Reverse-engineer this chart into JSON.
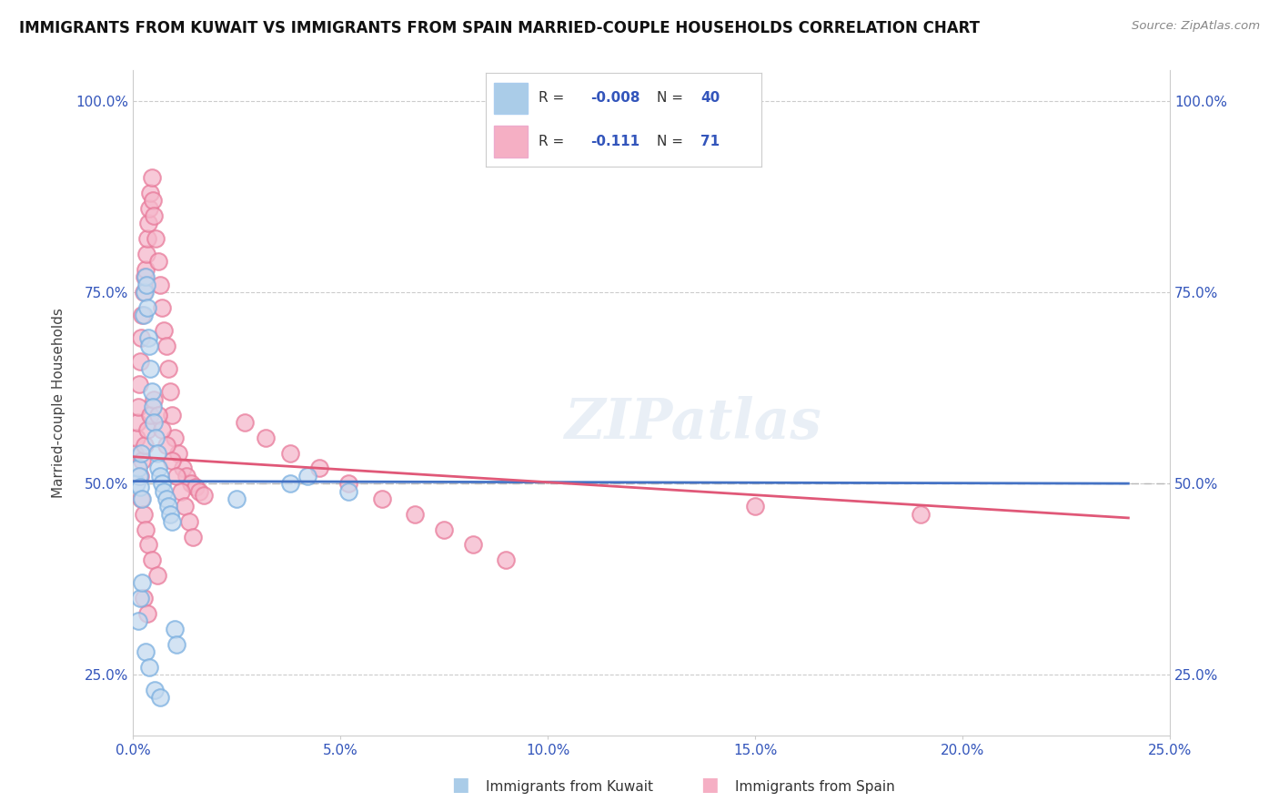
{
  "title": "IMMIGRANTS FROM KUWAIT VS IMMIGRANTS FROM SPAIN MARRIED-COUPLE HOUSEHOLDS CORRELATION CHART",
  "source": "Source: ZipAtlas.com",
  "ylabel": "Married-couple Households",
  "legend_label1": "Immigrants from Kuwait",
  "legend_label2": "Immigrants from Spain",
  "R1": -0.008,
  "N1": 40,
  "R2": -0.111,
  "N2": 71,
  "color1_edge": "#7aafe0",
  "color1_face": "#c5daef",
  "color2_edge": "#e87a9a",
  "color2_face": "#f5b8cb",
  "legend_color1": "#aacce8",
  "legend_color2": "#f5afc4",
  "line_color1": "#4472c4",
  "line_color2": "#e05878",
  "ref_line_color": "#b8b8b8",
  "text_color_blue": "#3355bb",
  "text_color_red": "#cc2244",
  "xmin": 0.0,
  "xmax": 0.25,
  "ymin": 0.17,
  "ymax": 1.04,
  "yticks": [
    0.25,
    0.5,
    0.75,
    1.0
  ],
  "ytick_labels": [
    "25.0%",
    "50.0%",
    "75.0%",
    "100.0%"
  ],
  "xticks": [
    0.0,
    0.05,
    0.1,
    0.15,
    0.2,
    0.25
  ],
  "xtick_labels": [
    "0.0%",
    "5.0%",
    "10.0%",
    "15.0%",
    "20.0%",
    "25.0%"
  ],
  "watermark": "ZIPatlas",
  "background_color": "#ffffff",
  "scatter1_x": [
    0.0008,
    0.0012,
    0.0015,
    0.0018,
    0.002,
    0.0022,
    0.0025,
    0.0028,
    0.003,
    0.0032,
    0.0035,
    0.0038,
    0.004,
    0.0042,
    0.0045,
    0.0048,
    0.005,
    0.0055,
    0.0058,
    0.0062,
    0.0065,
    0.007,
    0.0075,
    0.008,
    0.0085,
    0.009,
    0.0095,
    0.01,
    0.0105,
    0.0012,
    0.0018,
    0.0022,
    0.003,
    0.004,
    0.0052,
    0.0065,
    0.042,
    0.052,
    0.025,
    0.038
  ],
  "scatter1_y": [
    0.5,
    0.52,
    0.51,
    0.495,
    0.54,
    0.48,
    0.72,
    0.75,
    0.77,
    0.76,
    0.73,
    0.69,
    0.68,
    0.65,
    0.62,
    0.6,
    0.58,
    0.56,
    0.54,
    0.52,
    0.51,
    0.5,
    0.49,
    0.48,
    0.47,
    0.46,
    0.45,
    0.31,
    0.29,
    0.32,
    0.35,
    0.37,
    0.28,
    0.26,
    0.23,
    0.22,
    0.51,
    0.49,
    0.48,
    0.5
  ],
  "scatter2_x": [
    0.0005,
    0.0008,
    0.001,
    0.0012,
    0.0015,
    0.0018,
    0.002,
    0.0022,
    0.0025,
    0.0028,
    0.003,
    0.0032,
    0.0035,
    0.0038,
    0.004,
    0.0042,
    0.0045,
    0.0048,
    0.005,
    0.0055,
    0.006,
    0.0065,
    0.007,
    0.0075,
    0.008,
    0.0085,
    0.009,
    0.0095,
    0.01,
    0.011,
    0.012,
    0.013,
    0.014,
    0.015,
    0.016,
    0.017,
    0.0018,
    0.0022,
    0.0028,
    0.0035,
    0.0042,
    0.005,
    0.006,
    0.007,
    0.008,
    0.0095,
    0.0105,
    0.0115,
    0.0125,
    0.0135,
    0.0145,
    0.002,
    0.0025,
    0.003,
    0.0038,
    0.0045,
    0.0058,
    0.0025,
    0.0035,
    0.027,
    0.032,
    0.038,
    0.045,
    0.052,
    0.06,
    0.068,
    0.075,
    0.082,
    0.09,
    0.15,
    0.19
  ],
  "scatter2_y": [
    0.54,
    0.56,
    0.58,
    0.6,
    0.63,
    0.66,
    0.69,
    0.72,
    0.75,
    0.77,
    0.78,
    0.8,
    0.82,
    0.84,
    0.86,
    0.88,
    0.9,
    0.87,
    0.85,
    0.82,
    0.79,
    0.76,
    0.73,
    0.7,
    0.68,
    0.65,
    0.62,
    0.59,
    0.56,
    0.54,
    0.52,
    0.51,
    0.5,
    0.495,
    0.49,
    0.485,
    0.51,
    0.53,
    0.55,
    0.57,
    0.59,
    0.61,
    0.59,
    0.57,
    0.55,
    0.53,
    0.51,
    0.49,
    0.47,
    0.45,
    0.43,
    0.48,
    0.46,
    0.44,
    0.42,
    0.4,
    0.38,
    0.35,
    0.33,
    0.58,
    0.56,
    0.54,
    0.52,
    0.5,
    0.48,
    0.46,
    0.44,
    0.42,
    0.4,
    0.47,
    0.46
  ]
}
